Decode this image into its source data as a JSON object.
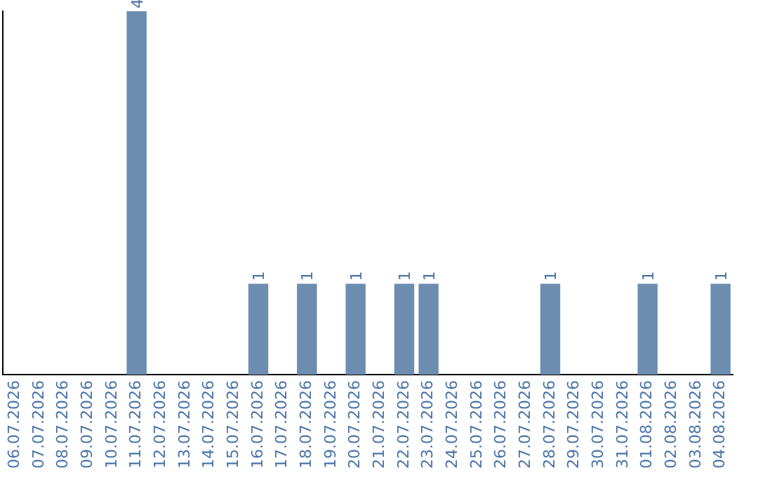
{
  "chart_data": {
    "type": "bar",
    "categories": [
      "06.07.2026",
      "07.07.2026",
      "08.07.2026",
      "09.07.2026",
      "10.07.2026",
      "11.07.2026",
      "12.07.2026",
      "13.07.2026",
      "14.07.2026",
      "15.07.2026",
      "16.07.2026",
      "17.07.2026",
      "18.07.2026",
      "19.07.2026",
      "20.07.2026",
      "21.07.2026",
      "22.07.2026",
      "23.07.2026",
      "24.07.2026",
      "25.07.2026",
      "26.07.2026",
      "27.07.2026",
      "28.07.2026",
      "29.07.2026",
      "30.07.2026",
      "31.07.2026",
      "01.08.2026",
      "02.08.2026",
      "03.08.2026",
      "04.08.2026"
    ],
    "values": [
      0,
      0,
      0,
      0,
      0,
      4,
      0,
      0,
      0,
      0,
      1,
      0,
      1,
      0,
      1,
      0,
      1,
      1,
      0,
      0,
      0,
      0,
      1,
      0,
      0,
      0,
      1,
      0,
      0,
      1
    ],
    "value_labels": [
      null,
      null,
      null,
      null,
      null,
      "4",
      null,
      null,
      null,
      null,
      "1",
      null,
      "1",
      null,
      "1",
      null,
      "1",
      "1",
      null,
      null,
      null,
      null,
      "1",
      null,
      null,
      null,
      "1",
      null,
      null,
      "1"
    ],
    "color": "#6d8db0",
    "ylim": [
      0,
      4
    ],
    "grid": false,
    "legend": false,
    "tick_labels": "x"
  }
}
